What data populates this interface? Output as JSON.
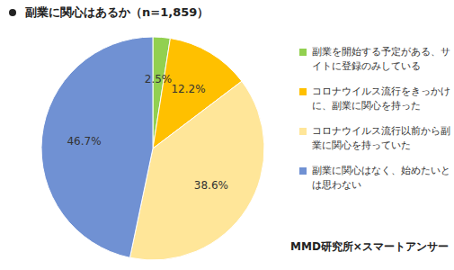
{
  "chart_data": {
    "type": "pie",
    "title": "副業に関心はあるか（n=1,859）",
    "categories": [
      "副業を開始する予定がある、サイトに登録のみしている",
      "コロナウイルス流行をきっかけに、副業に関心を持った",
      "コロナウイルス流行以前から副業に関心を持っていた",
      "副業に関心はなく、始めたいとは思わない"
    ],
    "values": [
      2.5,
      12.2,
      38.6,
      46.7
    ],
    "value_labels": [
      "2.5%",
      "12.2%",
      "38.6%",
      "46.7%"
    ],
    "colors": [
      "#92d050",
      "#ffc000",
      "#ffe699",
      "#7091d3"
    ],
    "data_labels": true,
    "legend": "right",
    "source": "MMD研究所×スマートアンサー"
  }
}
